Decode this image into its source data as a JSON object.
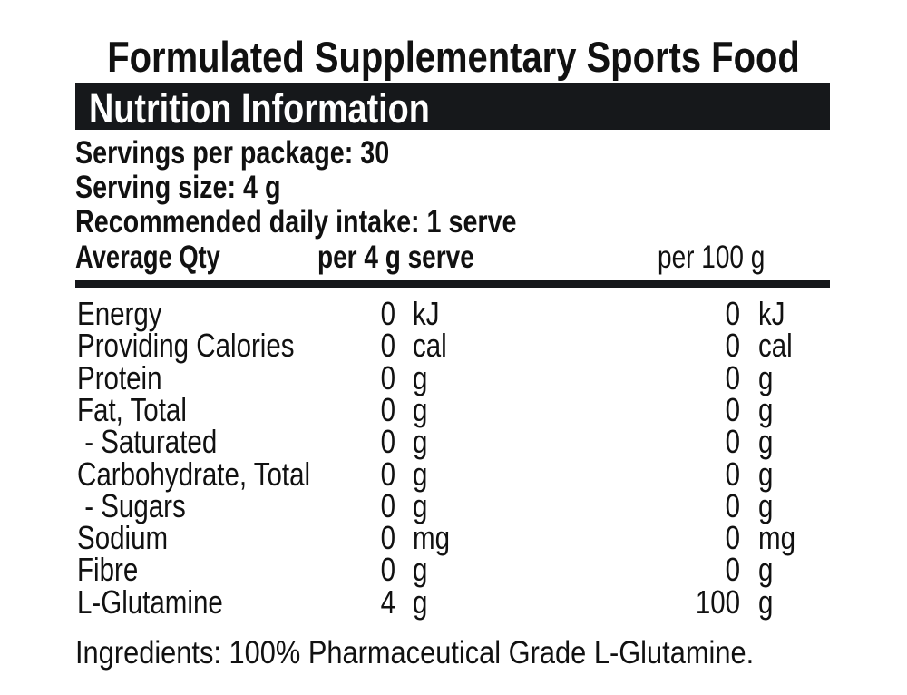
{
  "title": "Formulated Supplementary Sports Food",
  "heading": "Nutrition Information",
  "info": [
    "Servings per package: 30",
    "Serving size: 4 g",
    "Recommended daily intake: 1 serve"
  ],
  "columns": [
    "Average Qty",
    "per 4 g serve",
    "per 100 g"
  ],
  "rows": [
    {
      "name": "Energy",
      "per_serve": 0,
      "per_serve_unit": "kJ",
      "per_100g": 0,
      "per_100g_unit": "kJ"
    },
    {
      "name": "Providing Calories",
      "per_serve": 0,
      "per_serve_unit": "cal",
      "per_100g": 0,
      "per_100g_unit": "cal"
    },
    {
      "name": "Protein",
      "per_serve": 0,
      "per_serve_unit": "g",
      "per_100g": 0,
      "per_100g_unit": "g"
    },
    {
      "name": "Fat, Total",
      "per_serve": 0,
      "per_serve_unit": "g",
      "per_100g": 0,
      "per_100g_unit": "g"
    },
    {
      "name": " - Saturated",
      "per_serve": 0,
      "per_serve_unit": "g",
      "per_100g": 0,
      "per_100g_unit": "g"
    },
    {
      "name": "Carbohydrate, Total",
      "per_serve": 0,
      "per_serve_unit": "g",
      "per_100g": 0,
      "per_100g_unit": "g"
    },
    {
      "name": " - Sugars",
      "per_serve": 0,
      "per_serve_unit": "g",
      "per_100g": 0,
      "per_100g_unit": "g"
    },
    {
      "name": "Sodium",
      "per_serve": 0,
      "per_serve_unit": "mg",
      "per_100g": 0,
      "per_100g_unit": "mg"
    },
    {
      "name": "Fibre",
      "per_serve": 0,
      "per_serve_unit": "g",
      "per_100g": 0,
      "per_100g_unit": "g"
    },
    {
      "name": "L-Glutamine",
      "per_serve": 4,
      "per_serve_unit": "g",
      "per_100g": 100,
      "per_100g_unit": "g"
    }
  ],
  "ingredients": "Ingredients: 100% Pharmaceutical Grade L-Glutamine."
}
